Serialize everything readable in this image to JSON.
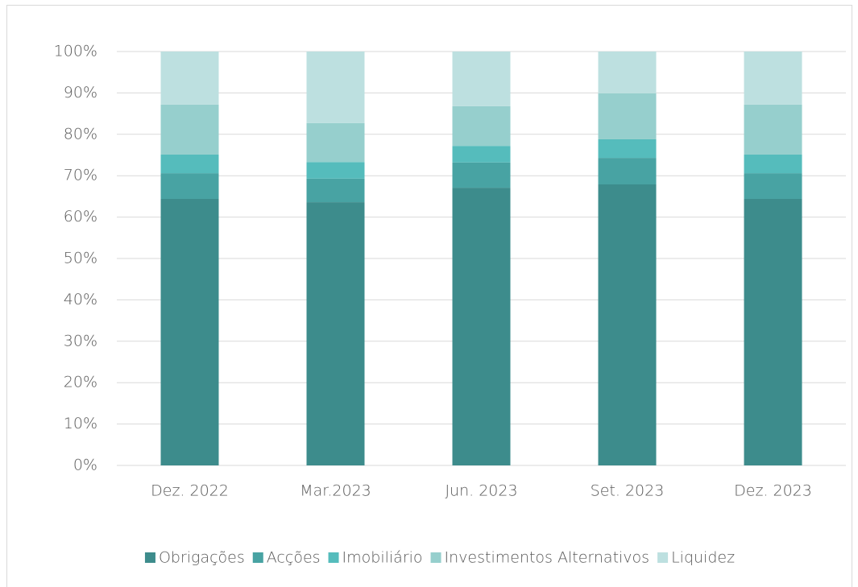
{
  "chart_data": {
    "type": "bar",
    "stacked": true,
    "categories": [
      "Dez. 2022",
      "Mar.2023",
      "Jun. 2023",
      "Set. 2023",
      "Dez. 2023"
    ],
    "series": [
      {
        "name": "Obrigações",
        "color": "#3d8c8c",
        "values": [
          64.4,
          63.6,
          67.1,
          67.9,
          64.4
        ]
      },
      {
        "name": "Acções",
        "color": "#48a3a3",
        "values": [
          6.2,
          5.7,
          6.1,
          6.4,
          6.2
        ]
      },
      {
        "name": "Imobiliário",
        "color": "#55bcbc",
        "values": [
          4.5,
          4.0,
          4.0,
          4.5,
          4.5
        ]
      },
      {
        "name": "Investimentos Alternativos",
        "color": "#96cfcd",
        "values": [
          12.1,
          9.4,
          9.6,
          11.1,
          12.1
        ]
      },
      {
        "name": "Liquidez",
        "color": "#bde0e0",
        "values": [
          12.8,
          17.3,
          13.2,
          10.1,
          12.8
        ]
      }
    ],
    "ylim": [
      0,
      100
    ],
    "yticks": [
      {
        "value": 0,
        "label": "0%"
      },
      {
        "value": 10,
        "label": "10%"
      },
      {
        "value": 20,
        "label": "20%"
      },
      {
        "value": 30,
        "label": "30%"
      },
      {
        "value": 40,
        "label": "40%"
      },
      {
        "value": 50,
        "label": "50%"
      },
      {
        "value": 60,
        "label": "60%"
      },
      {
        "value": 70,
        "label": "70%"
      },
      {
        "value": 80,
        "label": "80%"
      },
      {
        "value": 90,
        "label": "90%"
      },
      {
        "value": 100,
        "label": "100%"
      }
    ],
    "grid": true,
    "legend": "bottom"
  }
}
